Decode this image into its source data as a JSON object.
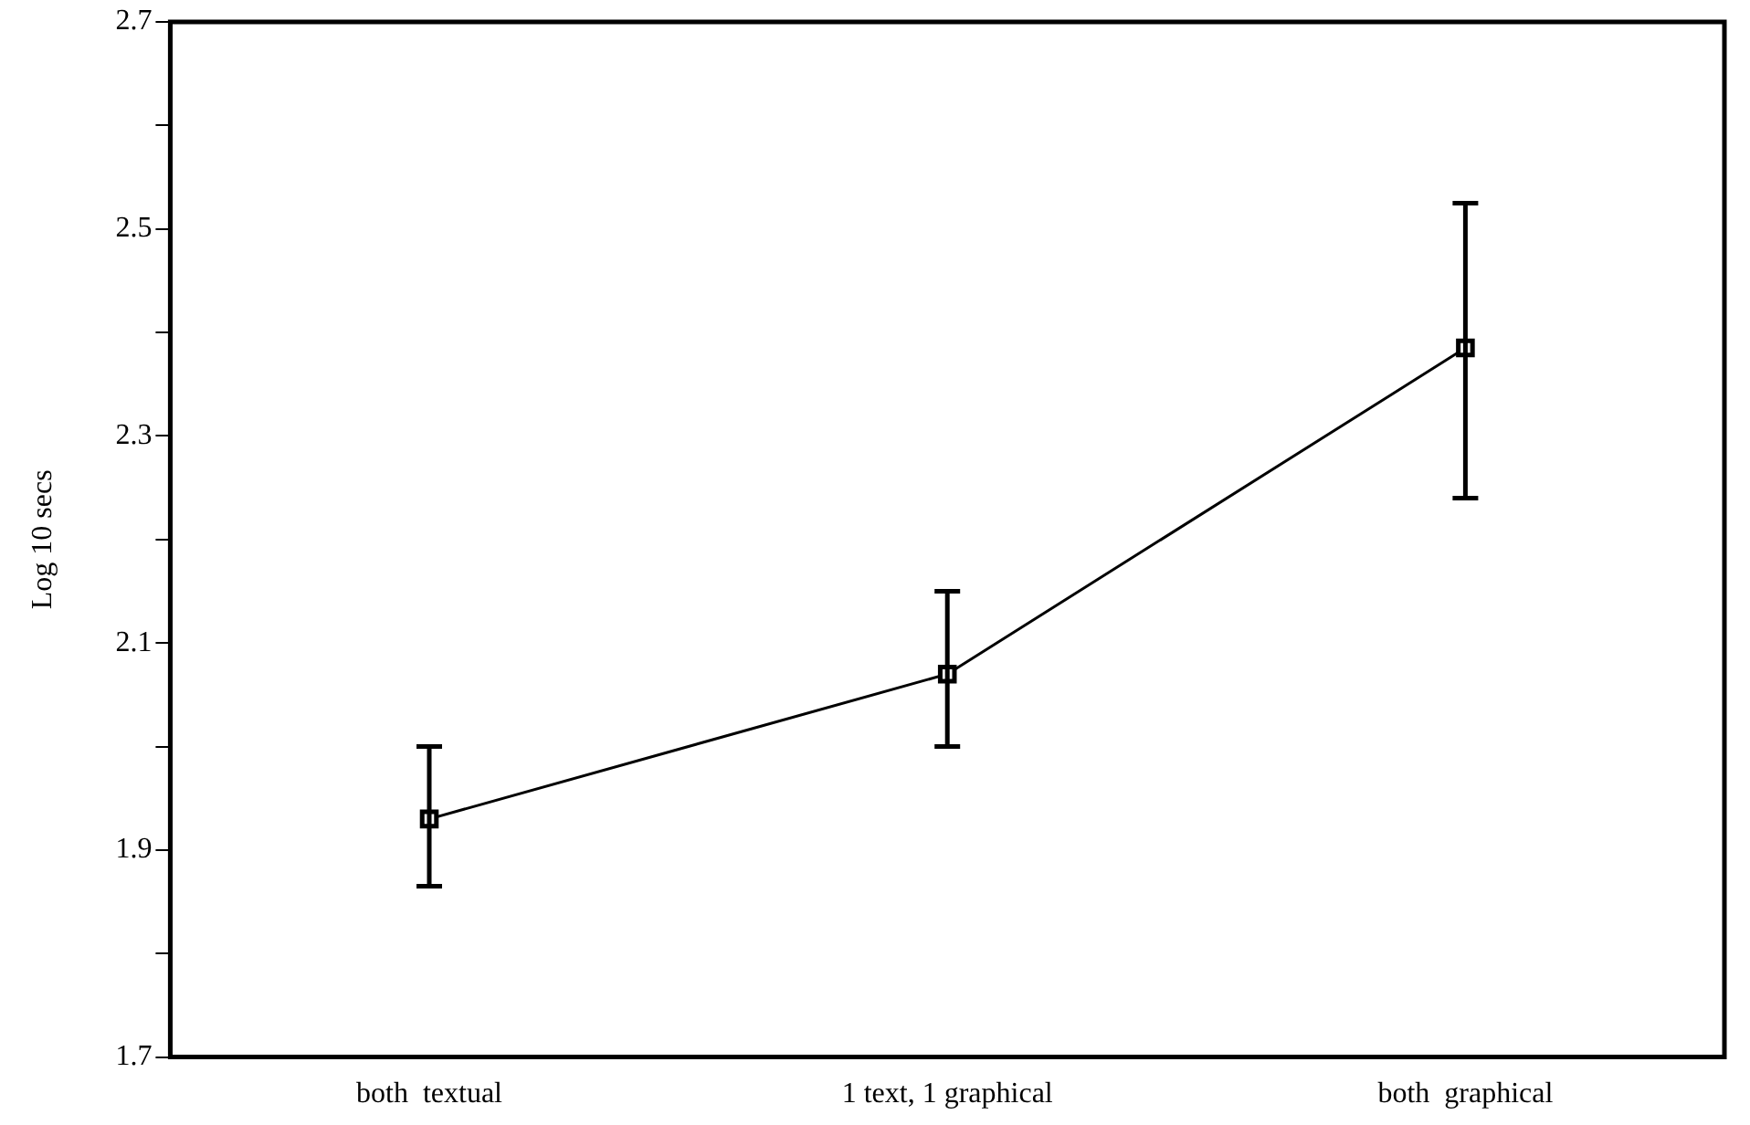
{
  "chart_data": {
    "type": "line",
    "ylabel": "Log 10 secs",
    "categories": [
      "both  textual",
      "1 text, 1 graphical",
      "both  graphical"
    ],
    "values": [
      1.93,
      2.07,
      2.385
    ],
    "errors": [
      [
        1.865,
        2.0
      ],
      [
        2.0,
        2.15
      ],
      [
        2.24,
        2.525
      ]
    ],
    "color": "#000000",
    "marker": "square",
    "line_style": "solid",
    "grid": false,
    "legend": false,
    "ylim": [
      1.7,
      2.7
    ],
    "yticks": [
      1.7,
      {
        "value": 1.8,
        "label": null
      },
      1.9,
      {
        "value": 2.0,
        "label": null
      },
      2.1,
      {
        "value": 2.2,
        "label": null
      },
      2.3,
      {
        "value": 2.4,
        "label": null
      },
      2.5,
      {
        "value": 2.6,
        "label": null
      },
      2.7
    ]
  }
}
